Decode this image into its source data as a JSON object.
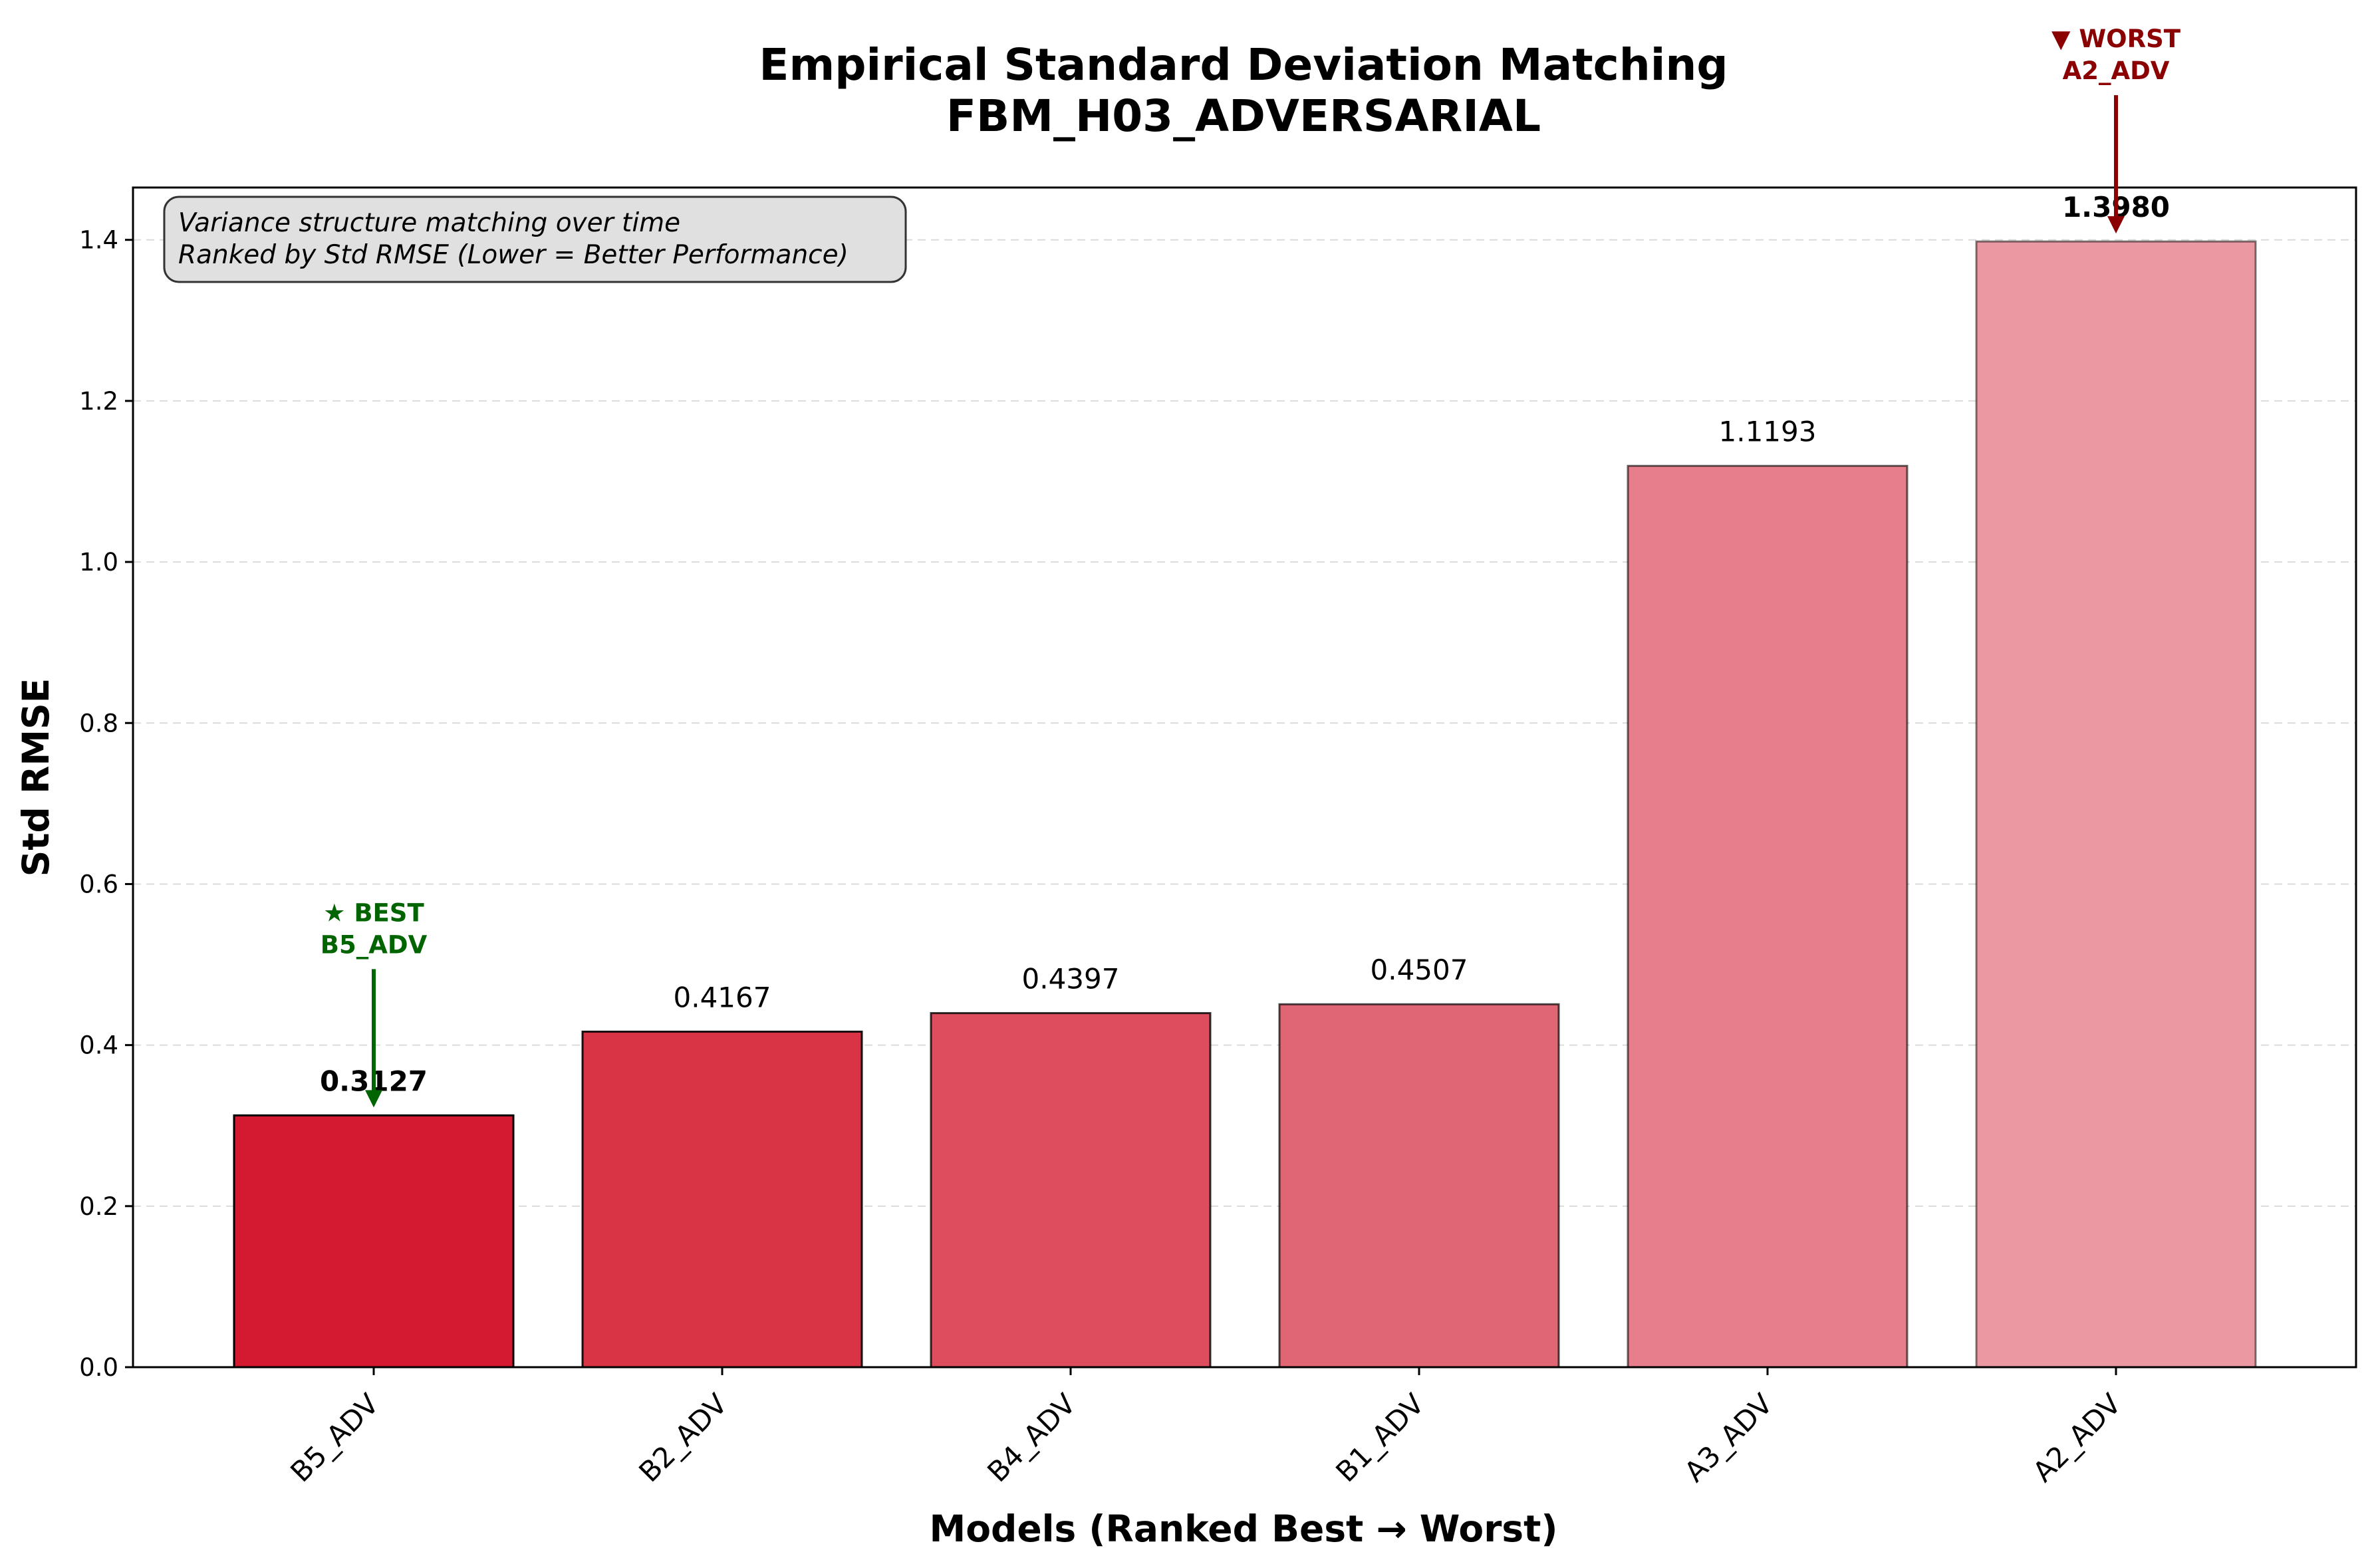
{
  "chart_data": {
    "type": "bar",
    "title": "Empirical Standard Deviation Matching",
    "subtitle": "FBM_H03_ADVERSARIAL",
    "xlabel": "Models (Ranked Best → Worst)",
    "ylabel": "Std RMSE",
    "categories": [
      "B5_ADV",
      "B2_ADV",
      "B4_ADV",
      "B1_ADV",
      "A3_ADV",
      "A2_ADV"
    ],
    "values": [
      0.3127,
      0.4167,
      0.4397,
      0.4507,
      1.1193,
      1.398
    ],
    "value_labels": [
      "0.3127",
      "0.4167",
      "0.4397",
      "0.4507",
      "1.1193",
      "1.3980"
    ],
    "bar_colors": [
      "#d41a30",
      "#d83446",
      "#dd4d5d",
      "#e16673",
      "#e67f8b",
      "#ea98a1"
    ],
    "ylim": [
      0,
      1.465
    ],
    "yticks": [
      0.0,
      0.2,
      0.4,
      0.6,
      0.8,
      1.0,
      1.2,
      1.4
    ],
    "ytick_labels": [
      "0.0",
      "0.2",
      "0.4",
      "0.6",
      "0.8",
      "1.0",
      "1.2",
      "1.4"
    ],
    "grid": "y-dashed",
    "info_box": {
      "line1": "Variance structure matching over time",
      "line2": "Ranked by Std RMSE (Lower = Better Performance)",
      "placement": "top-left"
    },
    "annotations": {
      "best": {
        "line1": "★ BEST",
        "line2": "B5_ADV",
        "color": "#006400",
        "category": "B5_ADV"
      },
      "worst": {
        "line1": "▼ WORST",
        "line2": "A2_ADV",
        "color": "#8b0000",
        "category": "A2_ADV"
      }
    }
  }
}
